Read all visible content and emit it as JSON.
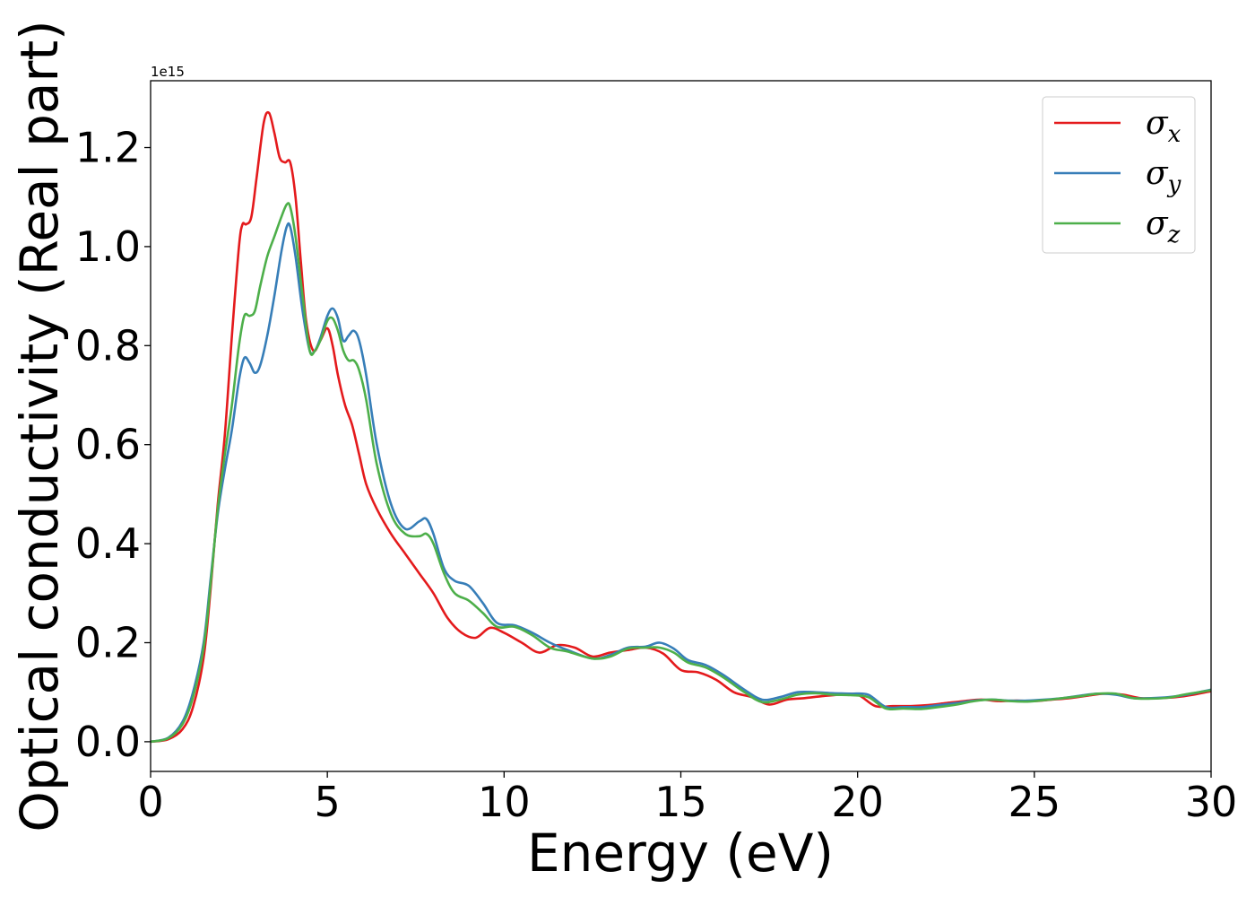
{
  "chart_data": {
    "type": "line",
    "xlabel": "Energy (eV)",
    "ylabel": "Optical conductivity (Real part)",
    "y_offset_label": "1e15",
    "xlim": [
      0,
      30
    ],
    "ylim": [
      -0.06,
      1.335
    ],
    "x_ticks": [
      0,
      5,
      10,
      15,
      20,
      25,
      30
    ],
    "x_tick_labels": [
      "0",
      "5",
      "10",
      "15",
      "20",
      "25",
      "30"
    ],
    "y_ticks": [
      0.0,
      0.2,
      0.4,
      0.6,
      0.8,
      1.0,
      1.2
    ],
    "y_tick_labels": [
      "0.0",
      "0.2",
      "0.4",
      "0.6",
      "0.8",
      "1.0",
      "1.2"
    ],
    "grid": false,
    "legend_position": "top-right",
    "legend": [
      {
        "symbol": "σ",
        "subscript": "x"
      },
      {
        "symbol": "σ",
        "subscript": "y"
      },
      {
        "symbol": "σ",
        "subscript": "z"
      }
    ],
    "series": [
      {
        "color": "#e41a1c",
        "x": [
          0,
          0.5,
          0.9,
          1.2,
          1.5,
          1.7,
          1.9,
          2.1,
          2.3,
          2.5,
          2.6,
          2.7,
          2.85,
          3.0,
          3.2,
          3.35,
          3.5,
          3.65,
          3.8,
          3.95,
          4.1,
          4.25,
          4.4,
          4.6,
          4.8,
          5.0,
          5.15,
          5.3,
          5.5,
          5.7,
          5.9,
          6.1,
          6.4,
          6.8,
          7.2,
          7.6,
          8.0,
          8.4,
          8.8,
          9.2,
          9.6,
          10.0,
          10.5,
          11.0,
          11.5,
          12.0,
          12.5,
          13.0,
          13.5,
          14.0,
          14.5,
          15.0,
          15.5,
          16.0,
          16.5,
          17.0,
          17.5,
          18.0,
          18.5,
          19.0,
          19.5,
          20.0,
          20.5,
          21.0,
          21.5,
          22.0,
          22.5,
          23.0,
          23.5,
          24.0,
          24.5,
          25.0,
          25.5,
          26.0,
          26.5,
          27.0,
          27.5,
          28.0,
          28.5,
          29.0,
          29.5,
          30.0
        ],
        "y": [
          0.0,
          0.005,
          0.025,
          0.07,
          0.17,
          0.31,
          0.48,
          0.62,
          0.82,
          1.0,
          1.045,
          1.045,
          1.06,
          1.14,
          1.25,
          1.27,
          1.23,
          1.18,
          1.17,
          1.17,
          1.1,
          0.97,
          0.85,
          0.79,
          0.81,
          0.835,
          0.8,
          0.74,
          0.68,
          0.64,
          0.58,
          0.52,
          0.47,
          0.42,
          0.38,
          0.34,
          0.3,
          0.25,
          0.22,
          0.21,
          0.23,
          0.22,
          0.2,
          0.18,
          0.195,
          0.19,
          0.172,
          0.18,
          0.185,
          0.19,
          0.178,
          0.145,
          0.14,
          0.125,
          0.1,
          0.09,
          0.075,
          0.085,
          0.088,
          0.092,
          0.095,
          0.095,
          0.072,
          0.072,
          0.072,
          0.074,
          0.078,
          0.082,
          0.085,
          0.082,
          0.083,
          0.082,
          0.085,
          0.088,
          0.093,
          0.097,
          0.095,
          0.088,
          0.088,
          0.09,
          0.095,
          0.102
        ]
      },
      {
        "color": "#377eb8",
        "x": [
          0,
          0.5,
          0.9,
          1.2,
          1.5,
          1.7,
          1.9,
          2.1,
          2.3,
          2.5,
          2.65,
          2.8,
          2.95,
          3.1,
          3.3,
          3.5,
          3.7,
          3.85,
          3.95,
          4.1,
          4.3,
          4.5,
          4.65,
          4.8,
          5.0,
          5.15,
          5.3,
          5.45,
          5.6,
          5.75,
          5.9,
          6.1,
          6.4,
          6.8,
          7.2,
          7.6,
          7.8,
          8.0,
          8.3,
          8.6,
          9.0,
          9.4,
          9.8,
          10.3,
          10.8,
          11.3,
          11.8,
          12.5,
          13.0,
          13.5,
          14.0,
          14.4,
          14.8,
          15.2,
          15.7,
          16.2,
          16.8,
          17.3,
          17.8,
          18.3,
          18.8,
          19.3,
          19.8,
          20.3,
          20.8,
          21.3,
          21.8,
          22.3,
          22.8,
          23.3,
          23.8,
          24.3,
          24.8,
          25.3,
          25.8,
          26.3,
          26.8,
          27.3,
          27.8,
          28.3,
          28.8,
          29.3,
          30.0
        ],
        "y": [
          0.0,
          0.008,
          0.04,
          0.1,
          0.2,
          0.33,
          0.46,
          0.55,
          0.63,
          0.73,
          0.775,
          0.765,
          0.745,
          0.76,
          0.82,
          0.9,
          0.99,
          1.04,
          1.04,
          0.98,
          0.87,
          0.79,
          0.79,
          0.815,
          0.86,
          0.875,
          0.855,
          0.81,
          0.82,
          0.83,
          0.81,
          0.74,
          0.6,
          0.48,
          0.43,
          0.445,
          0.45,
          0.42,
          0.35,
          0.325,
          0.315,
          0.28,
          0.24,
          0.235,
          0.22,
          0.2,
          0.185,
          0.168,
          0.175,
          0.19,
          0.192,
          0.2,
          0.188,
          0.165,
          0.155,
          0.135,
          0.105,
          0.085,
          0.09,
          0.1,
          0.1,
          0.098,
          0.097,
          0.095,
          0.07,
          0.07,
          0.07,
          0.074,
          0.078,
          0.083,
          0.085,
          0.083,
          0.083,
          0.085,
          0.088,
          0.093,
          0.097,
          0.095,
          0.088,
          0.088,
          0.09,
          0.095,
          0.105
        ]
      },
      {
        "color": "#4daf4a",
        "x": [
          0,
          0.5,
          0.9,
          1.2,
          1.5,
          1.7,
          1.9,
          2.1,
          2.3,
          2.5,
          2.65,
          2.8,
          2.95,
          3.1,
          3.3,
          3.5,
          3.7,
          3.85,
          3.95,
          4.1,
          4.3,
          4.5,
          4.65,
          4.8,
          5.0,
          5.15,
          5.3,
          5.45,
          5.6,
          5.75,
          5.9,
          6.1,
          6.4,
          6.8,
          7.2,
          7.6,
          7.8,
          8.0,
          8.3,
          8.6,
          9.0,
          9.4,
          9.8,
          10.3,
          10.8,
          11.3,
          11.8,
          12.5,
          13.0,
          13.5,
          14.0,
          14.4,
          14.8,
          15.2,
          15.7,
          16.2,
          16.8,
          17.3,
          17.8,
          18.3,
          18.8,
          19.3,
          19.8,
          20.3,
          20.8,
          21.3,
          21.8,
          22.3,
          22.8,
          23.3,
          23.8,
          24.3,
          24.8,
          25.3,
          25.8,
          26.3,
          26.8,
          27.3,
          27.8,
          28.3,
          28.8,
          29.3,
          30.0
        ],
        "y": [
          0.0,
          0.007,
          0.035,
          0.09,
          0.19,
          0.32,
          0.47,
          0.58,
          0.68,
          0.8,
          0.86,
          0.86,
          0.87,
          0.92,
          0.98,
          1.02,
          1.06,
          1.085,
          1.08,
          1.02,
          0.9,
          0.79,
          0.79,
          0.81,
          0.85,
          0.855,
          0.83,
          0.79,
          0.77,
          0.77,
          0.75,
          0.69,
          0.56,
          0.46,
          0.42,
          0.415,
          0.42,
          0.4,
          0.34,
          0.3,
          0.285,
          0.26,
          0.232,
          0.232,
          0.215,
          0.19,
          0.182,
          0.168,
          0.172,
          0.188,
          0.19,
          0.19,
          0.18,
          0.16,
          0.15,
          0.13,
          0.1,
          0.08,
          0.085,
          0.095,
          0.098,
          0.095,
          0.094,
          0.09,
          0.067,
          0.067,
          0.066,
          0.07,
          0.075,
          0.082,
          0.085,
          0.082,
          0.081,
          0.084,
          0.088,
          0.092,
          0.097,
          0.097,
          0.088,
          0.087,
          0.089,
          0.096,
          0.104
        ]
      }
    ]
  }
}
